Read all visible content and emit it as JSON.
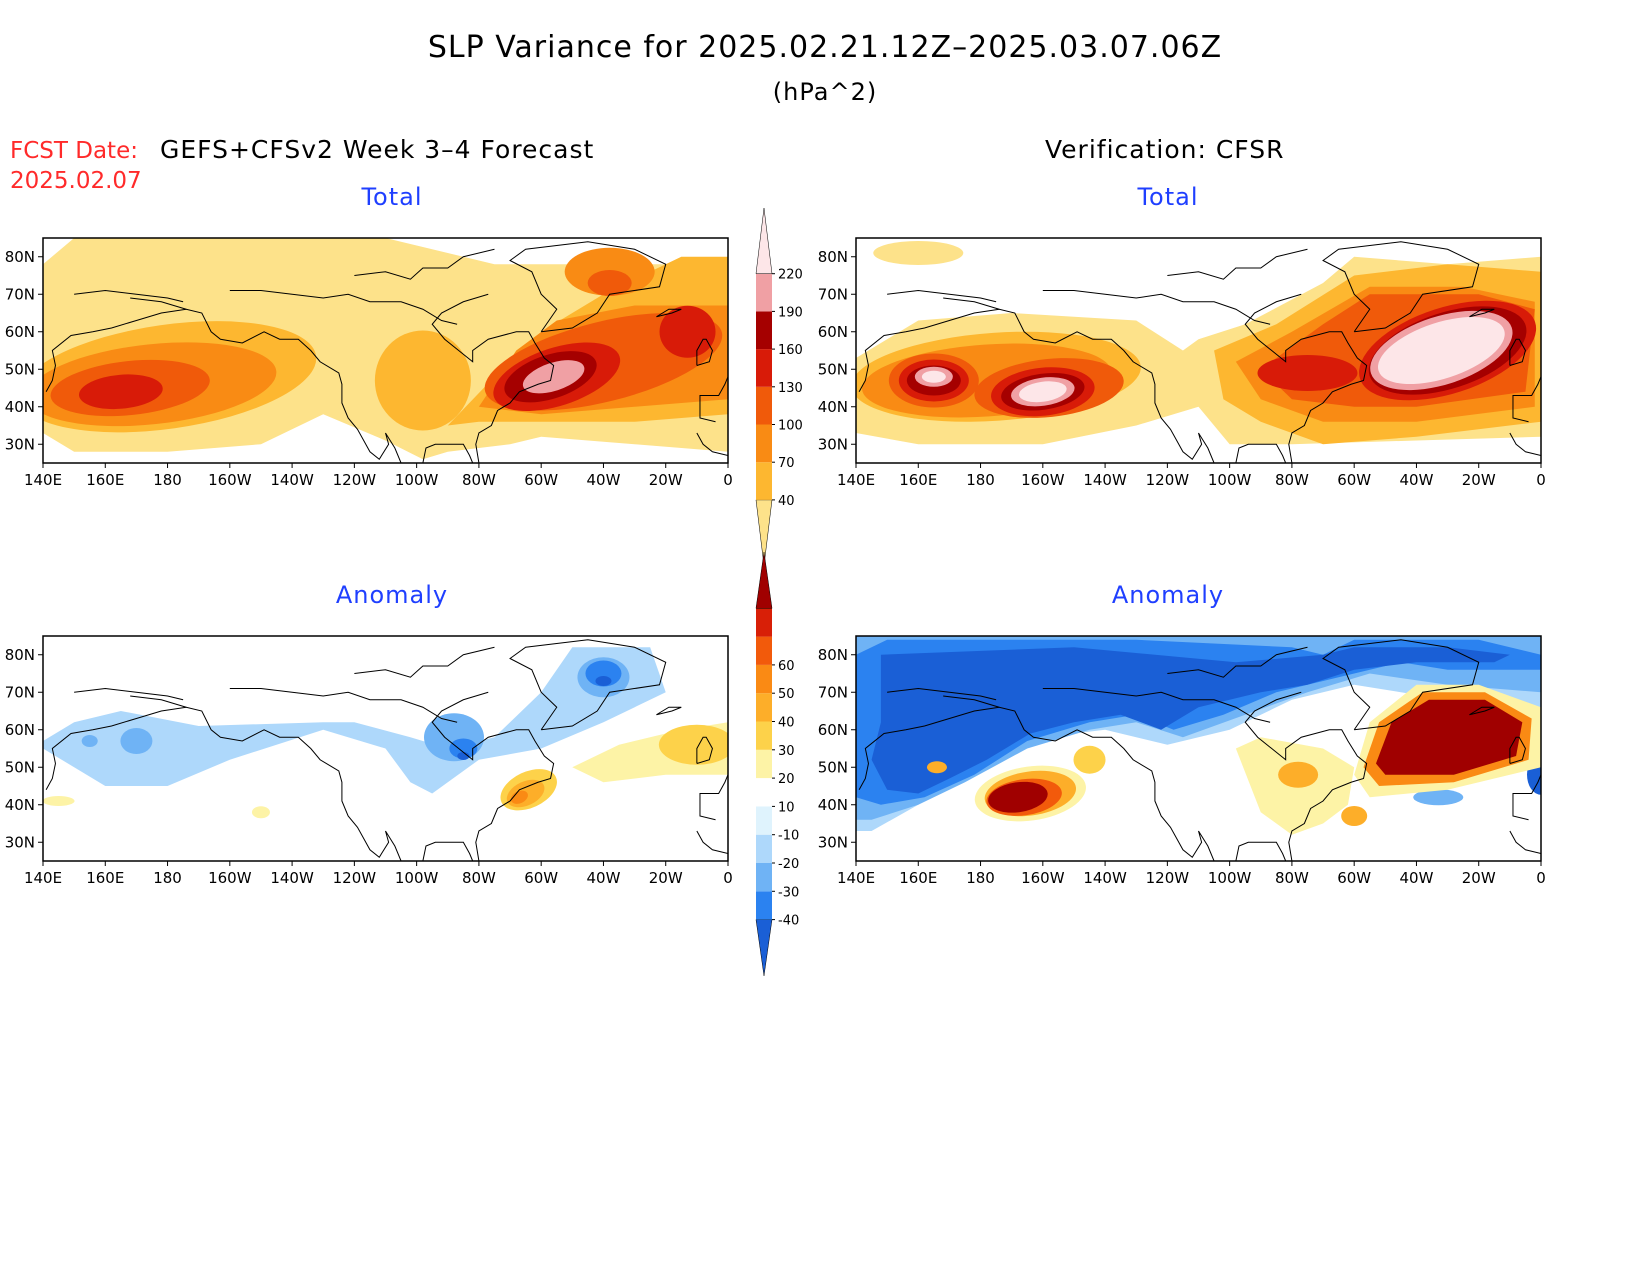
{
  "header": {
    "title": "SLP Variance for 2025.02.21.12Z–2025.03.07.06Z",
    "units": "(hPa^2)",
    "fcst_label": "FCST Date:",
    "fcst_date": "2025.02.07",
    "left_column_title": "GEFS+CFSv2 Week 3–4 Forecast",
    "right_column_title": "Verification: CFSR"
  },
  "panels": {
    "fc_total": {
      "title": "Total"
    },
    "vf_total": {
      "title": "Total"
    },
    "fc_anom": {
      "title": "Anomaly"
    },
    "vf_anom": {
      "title": "Anomaly"
    }
  },
  "axes": {
    "lon_labels": [
      "140E",
      "160E",
      "180",
      "160W",
      "140W",
      "120W",
      "100W",
      "80W",
      "60W",
      "40W",
      "20W",
      "0"
    ],
    "lat_labels": [
      "30N",
      "40N",
      "50N",
      "60N",
      "70N",
      "80N"
    ]
  },
  "colorbars": {
    "total": {
      "levels": [
        "40",
        "70",
        "100",
        "130",
        "160",
        "190",
        "220"
      ],
      "colors": [
        "#fde28a",
        "#fdb730",
        "#f98b14",
        "#f05a0a",
        "#d81b08",
        "#a50000",
        "#f0a0a4",
        "#fde6e8"
      ]
    },
    "anomaly": {
      "levels": [
        "-40",
        "-30",
        "-20",
        "-10",
        "10",
        "20",
        "30",
        "40",
        "50",
        "60"
      ],
      "colors": [
        "#1a5fd6",
        "#2b82f0",
        "#6fb3f5",
        "#aed8fb",
        "#dff3fd",
        "#ffffff",
        "#fdf3a6",
        "#fdd24a",
        "#fdae29",
        "#fa8a14",
        "#f25a0b",
        "#d81f07",
        "#a00000"
      ]
    }
  },
  "chart_data": [
    {
      "type": "heatmap",
      "title": "Total",
      "source": "GEFS+CFSv2 Week 3–4 Forecast",
      "lon_range": [
        140,
        360
      ],
      "lat_range": [
        25,
        85
      ],
      "features": [
        {
          "region": "North Pacific near 170E 45N",
          "value_band": "160-190"
        },
        {
          "region": "NW Atlantic near 50W 50N",
          "value_band": "190-220"
        },
        {
          "region": "Greenland near 40W 72N",
          "value_band": "130-160"
        }
      ]
    },
    {
      "type": "heatmap",
      "title": "Total",
      "source": "Verification: CFSR",
      "lon_range": [
        140,
        360
      ],
      "lat_range": [
        25,
        85
      ],
      "features": [
        {
          "region": "North Pacific near 165W 43N",
          "value_band": ">220"
        },
        {
          "region": "NW Pacific near 170E 48N",
          "value_band": ">220"
        },
        {
          "region": "North Atlantic near 35W 55N",
          "value_band": ">220"
        }
      ]
    },
    {
      "type": "heatmap",
      "title": "Anomaly",
      "source": "GEFS+CFSv2 Week 3–4 Forecast",
      "lon_range": [
        140,
        360
      ],
      "lat_range": [
        25,
        85
      ],
      "features": [
        {
          "region": "Greenland",
          "value_band": "-30 to -40"
        },
        {
          "region": "Hudson Bay",
          "value_band": "-30 to -40"
        },
        {
          "region": "off New England",
          "value_band": "30-40"
        }
      ]
    },
    {
      "type": "heatmap",
      "title": "Anomaly",
      "source": "Verification: CFSR",
      "lon_range": [
        140,
        360
      ],
      "lat_range": [
        25,
        85
      ],
      "features": [
        {
          "region": "Arctic / Alaska band",
          "value_band": "< -40"
        },
        {
          "region": "North Pacific near 160W 43N",
          "value_band": "> 60"
        },
        {
          "region": "North Atlantic near 35W 55N",
          "value_band": "> 60"
        }
      ]
    }
  ]
}
